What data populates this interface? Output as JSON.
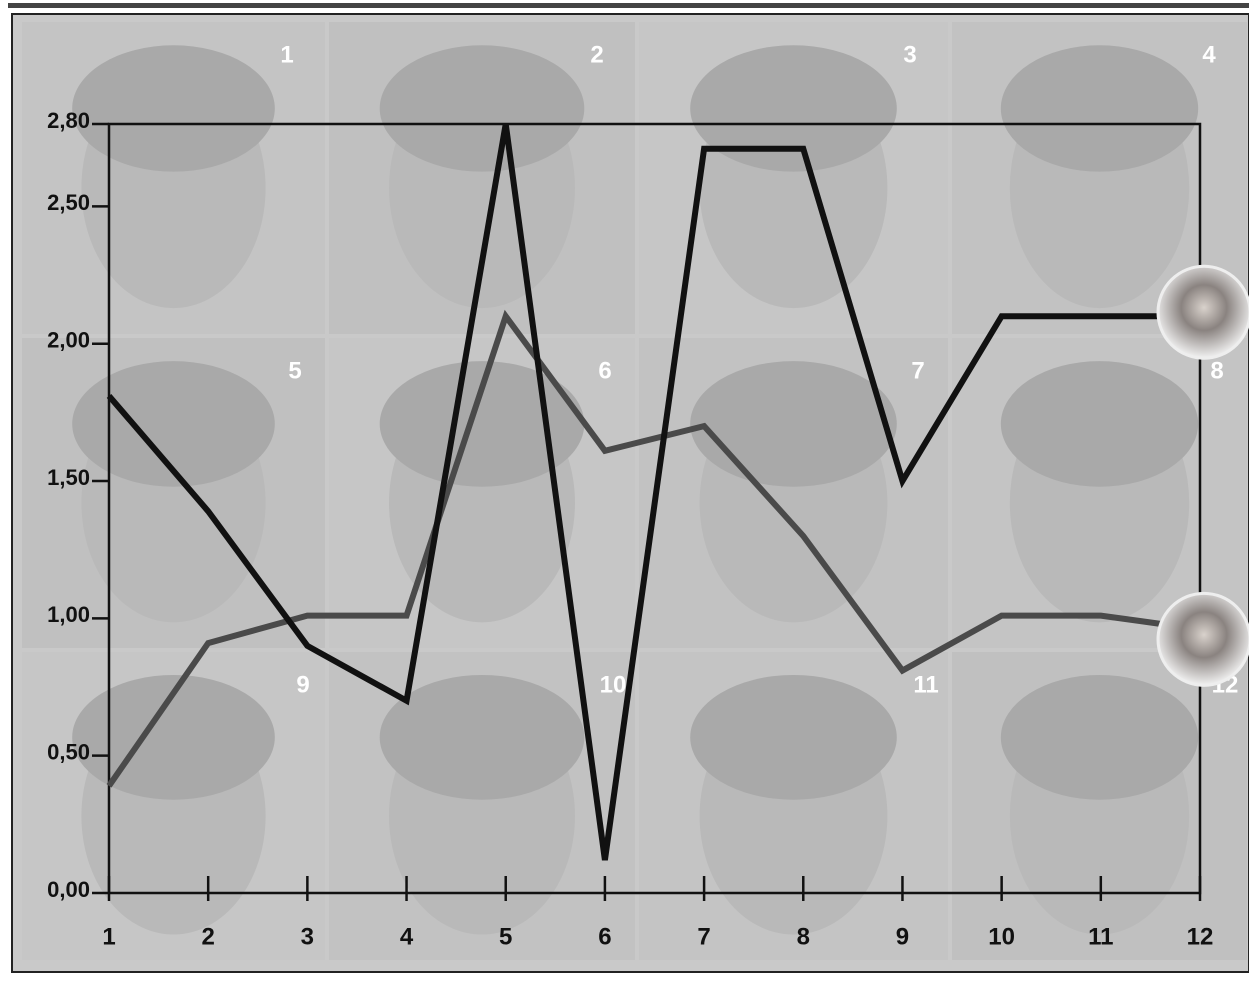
{
  "chart_data": {
    "type": "line",
    "panel_labels": [
      "1",
      "2",
      "3",
      "4",
      "5",
      "6",
      "7",
      "8",
      "9",
      "10",
      "11",
      "12"
    ],
    "x": [
      1,
      2,
      3,
      4,
      5,
      6,
      7,
      8,
      9,
      10,
      11,
      12
    ],
    "xlim": [
      1,
      12
    ],
    "xticks": [
      1,
      2,
      3,
      4,
      5,
      6,
      7,
      8,
      9,
      10,
      11,
      12
    ],
    "ylim": [
      0,
      2.8
    ],
    "yticks": [
      {
        "value": 0,
        "label": "0,00"
      },
      {
        "value": 0.5,
        "label": "0,50"
      },
      {
        "value": 1,
        "label": "1,00"
      },
      {
        "value": 1.5,
        "label": "1,50"
      },
      {
        "value": 2,
        "label": "2,00"
      },
      {
        "value": 2.5,
        "label": "2,50"
      },
      {
        "value": 2.8,
        "label": "2,80"
      }
    ],
    "series": [
      {
        "color": "#111111",
        "values": [
          1.81,
          1.39,
          0.9,
          0.7,
          2.8,
          0.12,
          2.71,
          2.71,
          1.5,
          2.1,
          2.1,
          2.1
        ]
      },
      {
        "color": "#4a4a4a",
        "values": [
          0.39,
          0.91,
          1.01,
          1.01,
          2.1,
          1.61,
          1.7,
          1.3,
          0.81,
          1.01,
          1.01,
          0.96
        ]
      }
    ]
  }
}
